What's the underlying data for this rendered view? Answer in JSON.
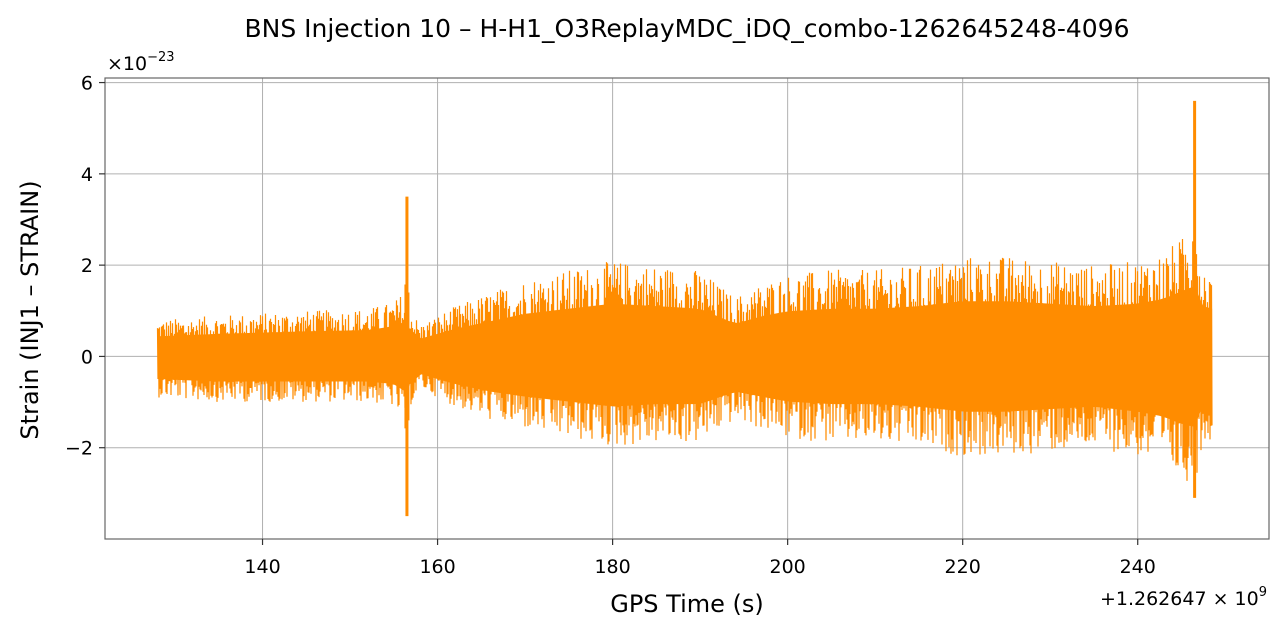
{
  "chart_data": {
    "type": "line",
    "title": "BNS Injection 10 – H-H1_O3ReplayMDC_iDQ_combo-1262645248-4096",
    "xlabel": "GPS Time (s)",
    "ylabel": "Strain (INJ1 – STRAIN)",
    "x_offset_label": "+1.262647 × 10",
    "x_offset_exponent": "9",
    "y_scale_label": "×10",
    "y_scale_exponent": "−23",
    "xlim": [
      122,
      255
    ],
    "ylim": [
      -4.0,
      6.1
    ],
    "x_ticks": [
      140,
      160,
      180,
      200,
      220,
      240
    ],
    "x_tick_labels": [
      "140",
      "160",
      "180",
      "200",
      "220",
      "240"
    ],
    "y_ticks": [
      -2,
      0,
      2,
      4,
      6
    ],
    "y_tick_labels": [
      "−2",
      "0",
      "2",
      "4",
      "6"
    ],
    "grid": true,
    "series": [
      {
        "color": "#ff8c00",
        "x_range": [
          128.0,
          248.5
        ],
        "envelope": {
          "x": [
            128,
            135,
            145,
            152,
            155,
            156,
            158,
            162,
            166,
            170,
            175,
            180,
            185,
            190,
            194,
            197,
            200,
            205,
            210,
            215,
            220,
            225,
            230,
            235,
            240,
            243,
            245,
            246.5,
            247.5,
            248.5
          ],
          "upper": [
            0.8,
            0.9,
            1.0,
            1.05,
            1.2,
            1.4,
            0.7,
            1.1,
            1.4,
            1.7,
            1.9,
            2.1,
            2.0,
            1.9,
            1.3,
            1.6,
            1.8,
            1.9,
            1.9,
            2.0,
            2.2,
            2.2,
            2.1,
            2.0,
            2.1,
            2.3,
            2.6,
            2.8,
            2.0,
            1.9
          ],
          "lower": [
            -0.9,
            -1.0,
            -1.0,
            -1.0,
            -1.1,
            -1.4,
            -0.7,
            -1.1,
            -1.4,
            -1.6,
            -1.8,
            -2.0,
            -1.9,
            -1.9,
            -1.4,
            -1.6,
            -1.8,
            -1.9,
            -1.9,
            -2.0,
            -2.2,
            -2.2,
            -2.1,
            -2.0,
            -2.2,
            -2.4,
            -2.7,
            -2.8,
            -1.9,
            -1.8
          ]
        },
        "spikes": [
          {
            "x": 156.5,
            "max": 3.5,
            "min": -3.5
          },
          {
            "x": 246.5,
            "max": 5.6,
            "min": -3.1
          }
        ]
      }
    ]
  }
}
